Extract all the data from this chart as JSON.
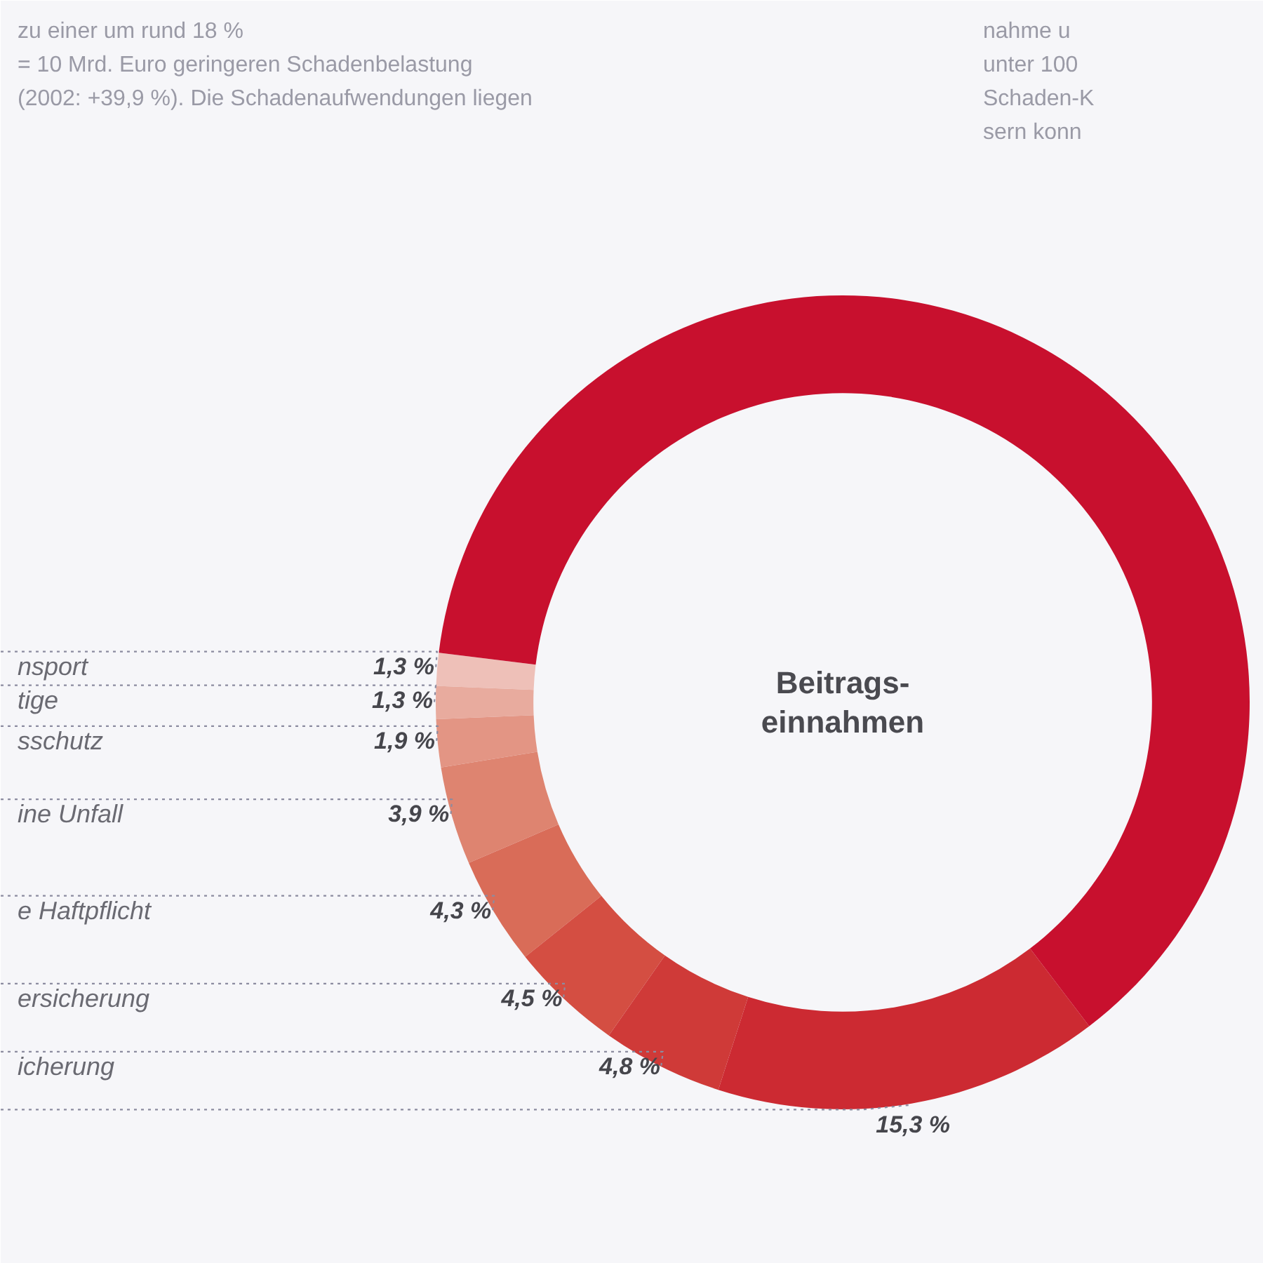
{
  "chart_data": {
    "type": "donut",
    "title": "Beitrags-\neinnahmen",
    "categories": [
      "nsport",
      "tige",
      "sschutz",
      "ine Unfall",
      "e Haftpflicht",
      "ersicherung",
      "icherung",
      null,
      null
    ],
    "values": [
      1.3,
      1.3,
      1.9,
      3.9,
      4.3,
      4.5,
      4.8,
      15.3,
      62.7
    ],
    "colors": [
      "#eec0b8",
      "#e8ab9e",
      "#e39584",
      "#de8470",
      "#d96c58",
      "#d44e42",
      "#cf3a38",
      "#cc2a32",
      "#c8102e"
    ],
    "value_labels": [
      "1,3 %",
      "1,3 %",
      "1,9 %",
      "3,9 %",
      "4,3 %",
      "4,5 %",
      "4,8 %",
      "15,3 %",
      null
    ],
    "annotations": [
      "zu einer um rund 18 %\n= 10 Mrd. Euro geringeren Schadenbelastung\n(2002: +39,9 %). Die Schadenaufwendungen liegen",
      "nahme u\nunter 100\nSchaden-K\nsern konn"
    ]
  }
}
